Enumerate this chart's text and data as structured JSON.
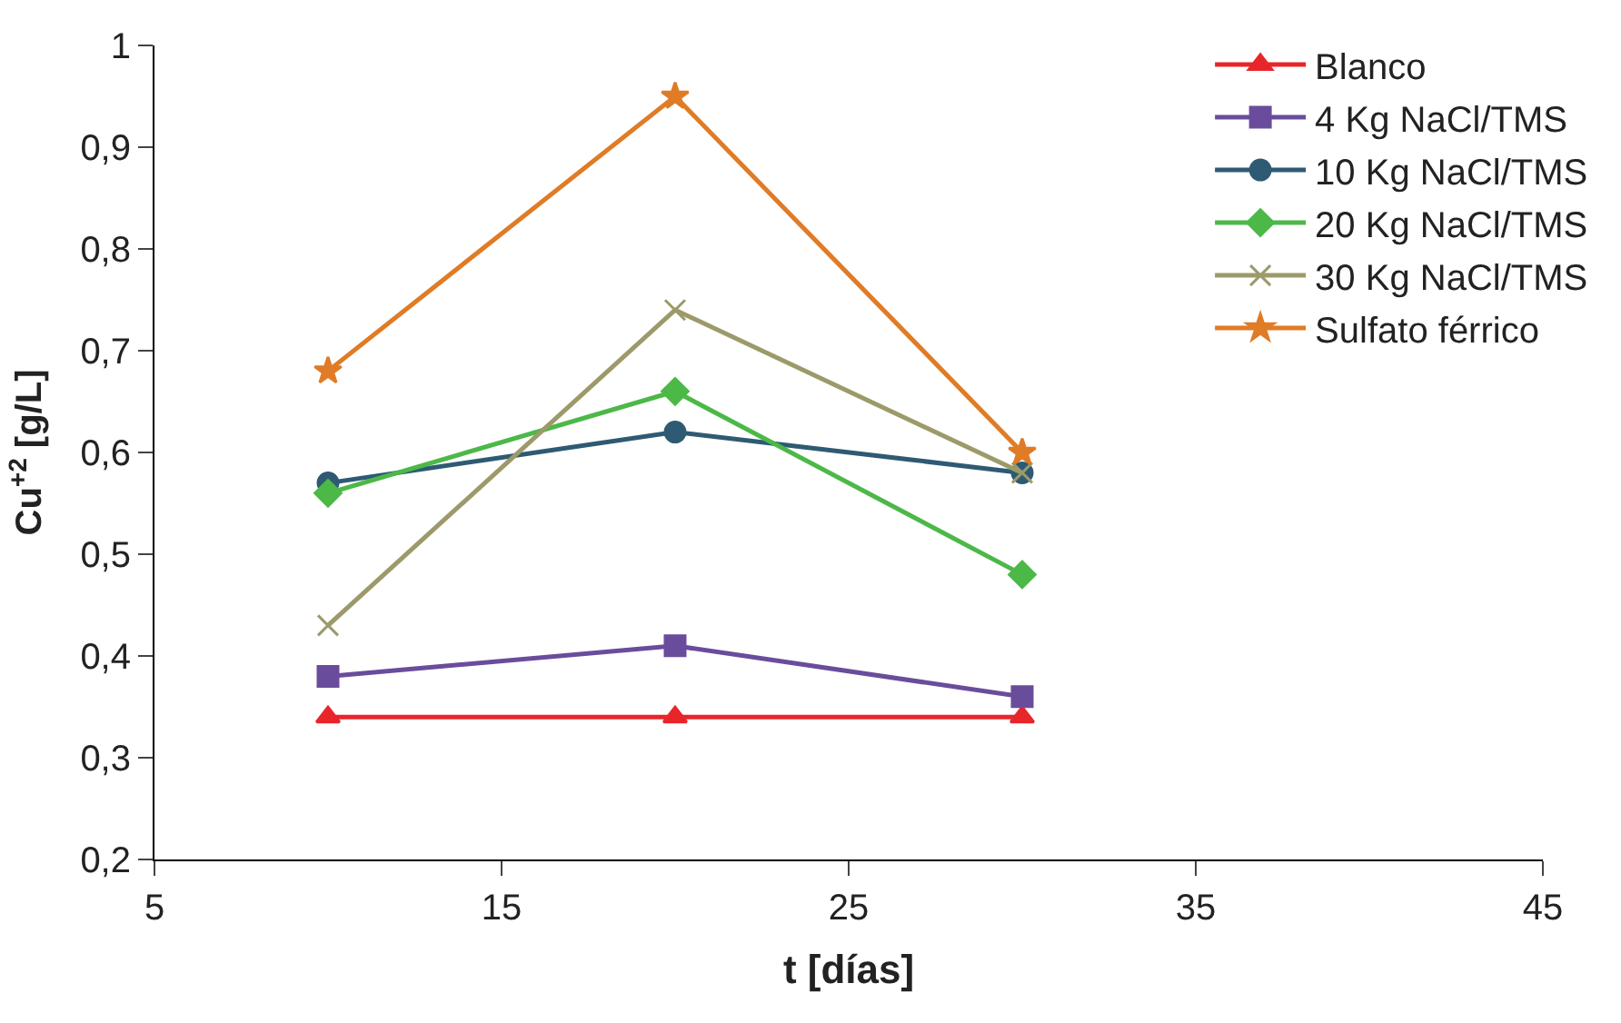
{
  "chart_data": {
    "type": "line",
    "xlabel": "t [días]",
    "ylabel": "Cu$^{+2}$ [g/L]",
    "x": [
      10,
      20,
      30
    ],
    "series": [
      {
        "name": "Blanco",
        "color": "#e8262a",
        "marker": "triangle",
        "values": [
          0.34,
          0.34,
          0.34
        ]
      },
      {
        "name": "4 Kg NaCl/TMS",
        "color": "#6a4c9c",
        "marker": "square",
        "values": [
          0.38,
          0.41,
          0.36
        ]
      },
      {
        "name": "10 Kg NaCl/TMS",
        "color": "#2e5a73",
        "marker": "circle",
        "values": [
          0.57,
          0.62,
          0.58
        ]
      },
      {
        "name": "20 Kg NaCl/TMS",
        "color": "#4cb848",
        "marker": "diamond",
        "values": [
          0.56,
          0.66,
          0.48
        ]
      },
      {
        "name": "30 Kg NaCl/TMS",
        "color": "#9c9a6a",
        "marker": "cross",
        "values": [
          0.43,
          0.74,
          0.58
        ]
      },
      {
        "name": "Sulfato férrico",
        "color": "#e07b26",
        "marker": "star",
        "values": [
          0.68,
          0.95,
          0.6
        ]
      }
    ],
    "xlim": [
      5,
      45
    ],
    "xticks": [
      5,
      15,
      25,
      35,
      45
    ],
    "ylim": [
      0.2,
      1
    ],
    "yticks": [
      {
        "value": 0.2,
        "label": "0,2"
      },
      {
        "value": 0.3,
        "label": "0,3"
      },
      {
        "value": 0.4,
        "label": "0,4"
      },
      {
        "value": 0.5,
        "label": "0,5"
      },
      {
        "value": 0.6,
        "label": "0,6"
      },
      {
        "value": 0.7,
        "label": "0,7"
      },
      {
        "value": 0.8,
        "label": "0,8"
      },
      {
        "value": 0.9,
        "label": "0,9"
      },
      1
    ],
    "legend": "top right",
    "line_style": "solid"
  }
}
